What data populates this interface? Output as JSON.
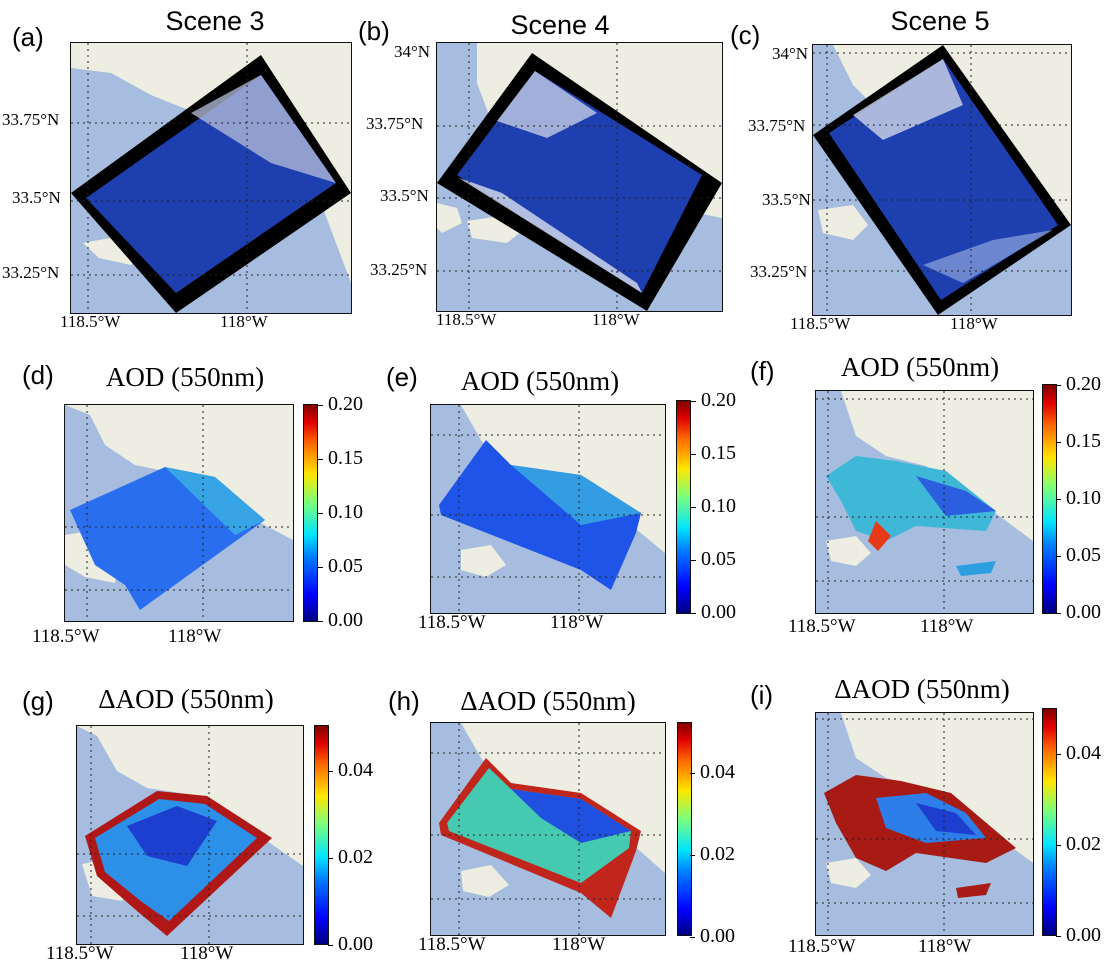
{
  "panel_labels": [
    "(a)",
    "(b)",
    "(c)",
    "(d)",
    "(e)",
    "(f)",
    "(g)",
    "(h)",
    "(i)"
  ],
  "scenes": [
    "Scene 3",
    "Scene 4",
    "Scene 5"
  ],
  "titles": {
    "aod": "AOD (550nm)",
    "daod": "ΔAOD (550nm)"
  },
  "lat_ticks": {
    "t34": "34°N",
    "t3375": "33.75°N",
    "t335": "33.5°N",
    "t3325": "33.25°N"
  },
  "lon_ticks": {
    "w1185": "118.5°W",
    "w118": "118°W"
  },
  "aod_colorbar": [
    "0.20",
    "0.15",
    "0.10",
    "0.05",
    "0.00"
  ],
  "daod_colorbar": [
    "0.04",
    "0.02",
    "0.00"
  ],
  "colors": {
    "ocean": "#a6bddf",
    "land": "#eeede1",
    "swath_edge": "#000000"
  }
}
